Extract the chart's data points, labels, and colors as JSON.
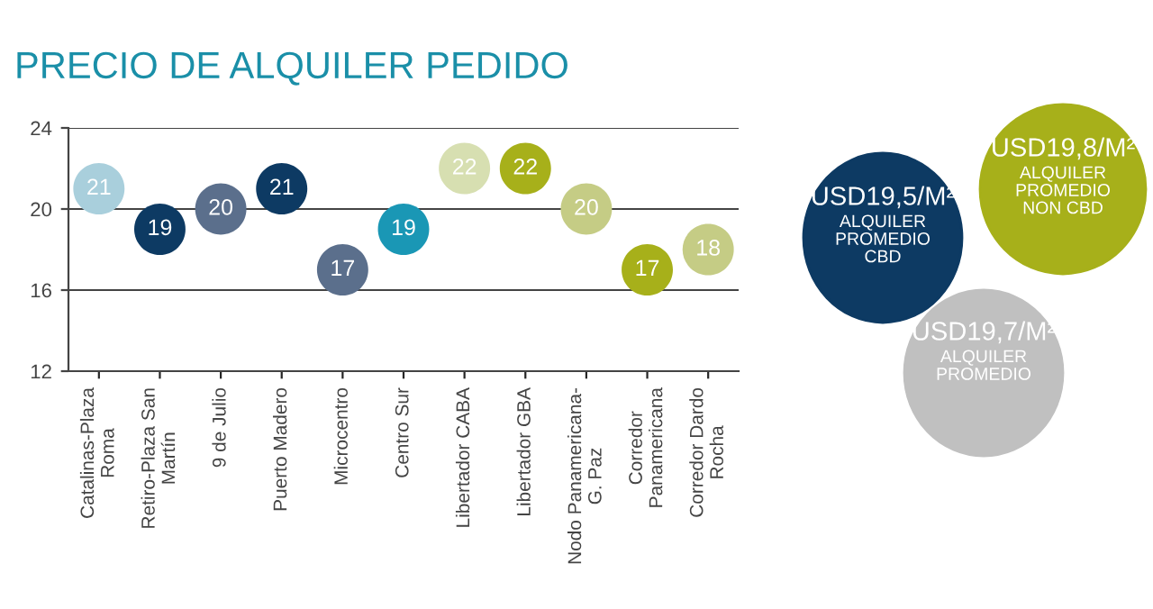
{
  "chart_data": [
    {
      "type": "scatter",
      "title": "PRECIO DE ALQUILER PEDIDO",
      "categories": [
        "Catalinas-Plaza\nRoma",
        "Retiro-Plaza San\nMartín",
        "9 de Julio",
        "Puerto Madero",
        "Microcentro",
        "Centro Sur",
        "Libertador CABA",
        "Libertador GBA",
        "Nodo Panamericana-\nG. Paz",
        "Corredor\nPanamericana",
        "Corredor Dardo\nRocha"
      ],
      "values": [
        21,
        19,
        20,
        21,
        17,
        19,
        22,
        22,
        20,
        17,
        18
      ],
      "colors": [
        "#a9cfdc",
        "#0d3a63",
        "#5b6f8c",
        "#0d3a63",
        "#5b6f8c",
        "#1a97b5",
        "#d7dfb1",
        "#a7b01a",
        "#c5cc85",
        "#a7b01a",
        "#c5cc85"
      ],
      "ylim": [
        12,
        24
      ],
      "yticks": [
        12,
        16,
        20,
        24
      ],
      "grid": "y",
      "data_labels": true,
      "marker": "circle"
    },
    {
      "type": "other",
      "annotations": [
        "USD19,5/M²\nALQUILER\nPROMEDIO\nCBD",
        "USD19,8/M²\nALQUILER\nPROMEDIO\nNON CBD",
        "USD19,7/M²\nALQUILER\nPROMEDIO"
      ],
      "colors": [
        "#0d3a63",
        "#a7b01a",
        "#c0c0c0"
      ]
    }
  ]
}
